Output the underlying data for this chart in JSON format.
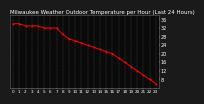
{
  "title": "Milwaukee Weather Outdoor Temperature per Hour (Last 24 Hours)",
  "hours": [
    0,
    1,
    2,
    3,
    4,
    5,
    6,
    7,
    8,
    9,
    10,
    11,
    12,
    13,
    14,
    15,
    16,
    17,
    18,
    19,
    20,
    21,
    22,
    23
  ],
  "temps": [
    34,
    34,
    33,
    33,
    33,
    32,
    32,
    32,
    29,
    27,
    26,
    25,
    24,
    23,
    22,
    21,
    20,
    18,
    16,
    14,
    12,
    10,
    8,
    6
  ],
  "line_color": "#ff0000",
  "marker_color": "#ff0000",
  "bg_color": "#1a1a1a",
  "plot_bg_color": "#0a0a0a",
  "grid_color": "#555555",
  "text_color": "#ffffff",
  "spine_color": "#666666",
  "ylim": [
    4,
    38
  ],
  "yticks": [
    8,
    12,
    16,
    20,
    24,
    28,
    32,
    36
  ],
  "ylabel_fontsize": 3.5,
  "xlabel_fontsize": 3.0,
  "title_fontsize": 4.0,
  "linewidth": 0.7,
  "markersize": 1.2
}
